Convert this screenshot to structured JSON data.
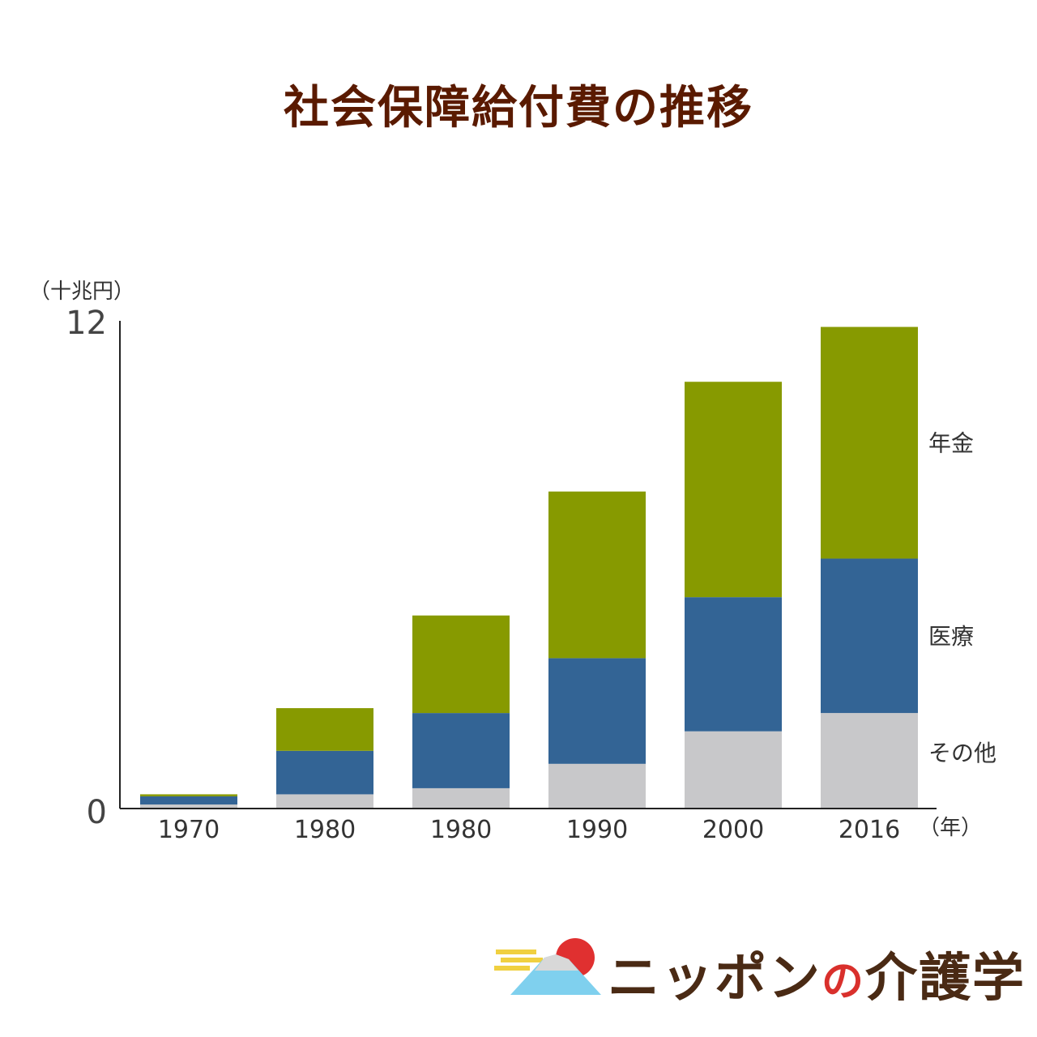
{
  "title": "社会保障給付費の推移",
  "chart_data": {
    "type": "bar",
    "stacked": true,
    "title": "社会保障給付費の推移",
    "ylabel": "（十兆円）",
    "xlabel": "（年）",
    "ylim": [
      0,
      12
    ],
    "yticks": [
      "0",
      "12"
    ],
    "categories": [
      "1970",
      "1980",
      "1980",
      "1990",
      "2000",
      "2016"
    ],
    "series": [
      {
        "name": "その他",
        "color": "#c8c8ca",
        "values": [
          0.1,
          0.35,
          0.5,
          1.1,
          1.9,
          2.35
        ]
      },
      {
        "name": "医療",
        "color": "#336495",
        "values": [
          0.2,
          1.07,
          1.85,
          2.6,
          3.3,
          3.8
        ]
      },
      {
        "name": "年金",
        "color": "#879a00",
        "values": [
          0.05,
          1.05,
          2.4,
          4.1,
          5.3,
          5.7
        ]
      }
    ]
  },
  "logo": {
    "name": "ニッポンの介護学",
    "part1": "ニッポン",
    "part2": "の",
    "part3": "介護学"
  }
}
